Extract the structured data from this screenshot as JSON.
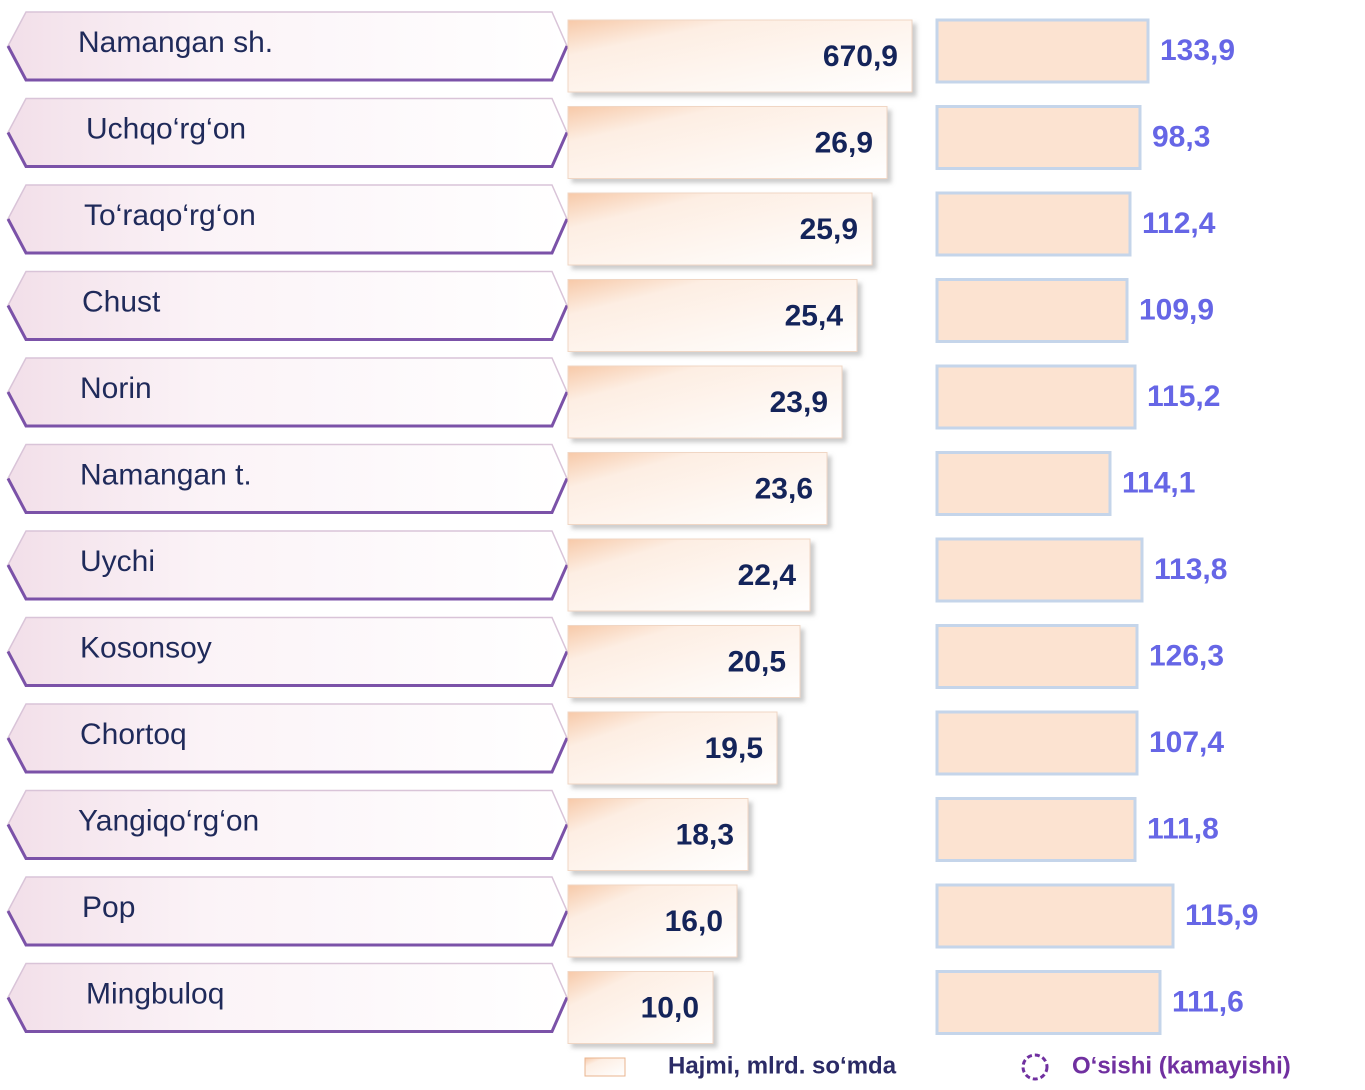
{
  "rows": [
    {
      "name": "Namangan sh.",
      "volume": "670,9",
      "growth": "133,9"
    },
    {
      "name": "Uchqo‘rg‘on",
      "volume": "26,9",
      "growth": "98,3"
    },
    {
      "name": "To‘raqo‘rg‘on",
      "volume": "25,9",
      "growth": "112,4"
    },
    {
      "name": "Chust",
      "volume": "25,4",
      "growth": "109,9"
    },
    {
      "name": "Norin",
      "volume": "23,9",
      "growth": "115,2"
    },
    {
      "name": "Namangan t.",
      "volume": "23,6",
      "growth": "114,1"
    },
    {
      "name": "Uychi",
      "volume": "22,4",
      "growth": "113,8"
    },
    {
      "name": "Kosonsoy",
      "volume": "20,5",
      "growth": "126,3"
    },
    {
      "name": "Chortoq",
      "volume": "19,5",
      "growth": "107,4"
    },
    {
      "name": "Yangiqo‘rg‘on",
      "volume": "18,3",
      "growth": "111,8"
    },
    {
      "name": "Pop",
      "volume": "16,0",
      "growth": "115,9"
    },
    {
      "name": "Mingbuloq",
      "volume": "10,0",
      "growth": "111,6"
    }
  ],
  "legend": {
    "volume": "Hajmi, mlrd. so‘mda",
    "growth": "O‘sishi (kamayishi)"
  }
}
